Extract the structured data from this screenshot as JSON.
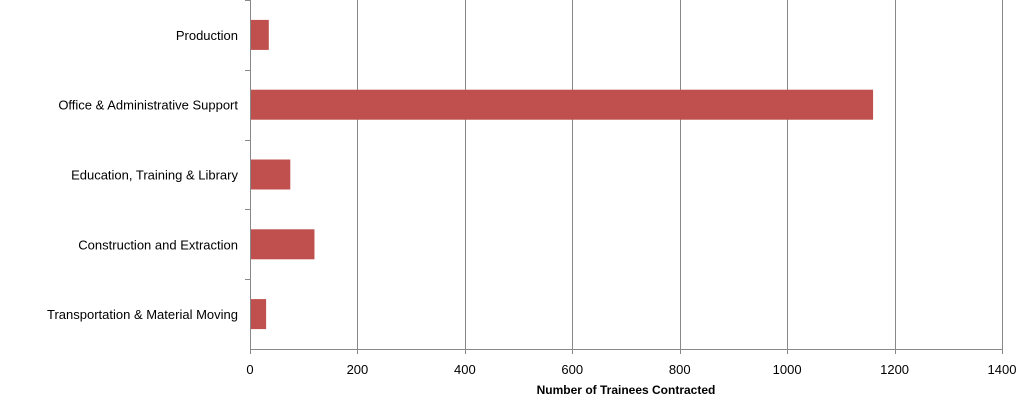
{
  "chart_data": {
    "type": "bar",
    "orientation": "horizontal",
    "categories": [
      "Production",
      "Office & Administrative Support",
      "Education, Training & Library",
      "Construction and Extraction",
      "Transportation & Material Moving"
    ],
    "values": [
      35,
      1160,
      75,
      120,
      30
    ],
    "xlabel": "Number of Trainees Contracted",
    "ylabel": "",
    "xlim": [
      0,
      1400
    ],
    "xticks": [
      0,
      200,
      400,
      600,
      800,
      1000,
      1200,
      1400
    ],
    "grid": "vertical",
    "legend": "none",
    "bar_color": "#c0504d"
  }
}
